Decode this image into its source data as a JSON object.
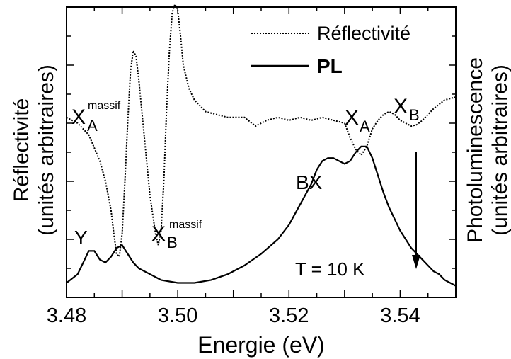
{
  "chart_data": {
    "type": "line",
    "xlabel": "Energie (eV)",
    "ylabel_left": "Réflectivité",
    "ylabel_left_sub": "(unités arbitraires)",
    "ylabel_right": "Photoluminescence",
    "ylabel_right_sub": "(unités arbitraires)",
    "xlim": [
      3.48,
      3.55
    ],
    "ylim": [
      0,
      10
    ],
    "grid": false,
    "legend_position": "top-right",
    "x_ticks": [
      "3.48",
      "3.50",
      "3.52",
      "3.54"
    ],
    "x_tick_values": [
      3.48,
      3.5,
      3.52,
      3.54
    ],
    "series": [
      {
        "name": "Réflectivité",
        "style": "dotted",
        "x": [
          3.48,
          3.482,
          3.484,
          3.486,
          3.487,
          3.488,
          3.4885,
          3.489,
          3.4895,
          3.49,
          3.4905,
          3.491,
          3.4915,
          3.492,
          3.4925,
          3.493,
          3.494,
          3.495,
          3.496,
          3.4965,
          3.497,
          3.4975,
          3.498,
          3.4985,
          3.499,
          3.4995,
          3.5,
          3.5005,
          3.501,
          3.502,
          3.503,
          3.504,
          3.505,
          3.507,
          3.509,
          3.512,
          3.514,
          3.516,
          3.518,
          3.52,
          3.522,
          3.524,
          3.526,
          3.528,
          3.53,
          3.531,
          3.532,
          3.533,
          3.534,
          3.535,
          3.536,
          3.537,
          3.538,
          3.539,
          3.54,
          3.541,
          3.542,
          3.543,
          3.544,
          3.545,
          3.546,
          3.548,
          3.55
        ],
        "y": [
          6.2,
          6.0,
          5.6,
          4.7,
          4.0,
          3.0,
          2.2,
          1.5,
          1.4,
          2.2,
          4.0,
          6.0,
          7.8,
          8.5,
          8.3,
          7.5,
          5.5,
          3.5,
          2.2,
          1.8,
          2.3,
          4.0,
          6.5,
          8.5,
          9.8,
          10.1,
          9.9,
          9.0,
          8.0,
          7.2,
          6.8,
          6.6,
          6.4,
          6.3,
          6.2,
          6.2,
          5.9,
          6.1,
          6.2,
          6.1,
          6.2,
          6.1,
          6.2,
          6.1,
          6.0,
          5.5,
          5.1,
          4.9,
          5.2,
          5.8,
          6.1,
          6.3,
          6.4,
          6.3,
          6.1,
          6.0,
          5.9,
          5.95,
          6.1,
          6.3,
          6.5,
          6.8,
          6.9
        ]
      },
      {
        "name": "PL",
        "style": "solid",
        "x": [
          3.48,
          3.482,
          3.483,
          3.484,
          3.485,
          3.486,
          3.487,
          3.488,
          3.489,
          3.49,
          3.491,
          3.492,
          3.493,
          3.495,
          3.497,
          3.5,
          3.503,
          3.506,
          3.509,
          3.512,
          3.515,
          3.518,
          3.52,
          3.522,
          3.524,
          3.525,
          3.526,
          3.527,
          3.528,
          3.529,
          3.53,
          3.531,
          3.532,
          3.533,
          3.534,
          3.535,
          3.536,
          3.537,
          3.538,
          3.539,
          3.54,
          3.541,
          3.542,
          3.543,
          3.544,
          3.545,
          3.546,
          3.547,
          3.548,
          3.549,
          3.55
        ],
        "y": [
          0.5,
          0.8,
          1.2,
          1.6,
          1.6,
          1.3,
          1.2,
          1.4,
          1.7,
          1.8,
          1.5,
          1.2,
          1.0,
          0.8,
          0.6,
          0.5,
          0.5,
          0.6,
          0.8,
          1.1,
          1.5,
          2.0,
          2.5,
          3.2,
          3.9,
          4.4,
          4.7,
          4.8,
          4.8,
          4.7,
          4.6,
          4.7,
          5.0,
          5.2,
          5.2,
          4.8,
          4.2,
          3.6,
          3.1,
          2.7,
          2.3,
          2.0,
          1.7,
          1.5,
          1.3,
          1.1,
          0.9,
          0.8,
          0.6,
          0.5,
          0.4
        ]
      }
    ],
    "annotations": {
      "xa_massif": {
        "main": "X",
        "sub": "A",
        "sup": "massif"
      },
      "xb_massif": {
        "main": "X",
        "sub": "B",
        "sup": "massif"
      },
      "xa": {
        "main": "X",
        "sub": "A"
      },
      "xb": {
        "main": "X",
        "sub": "B"
      },
      "y_label": "Y",
      "bx_label": "BX",
      "temperature": "T = 10 K"
    }
  }
}
